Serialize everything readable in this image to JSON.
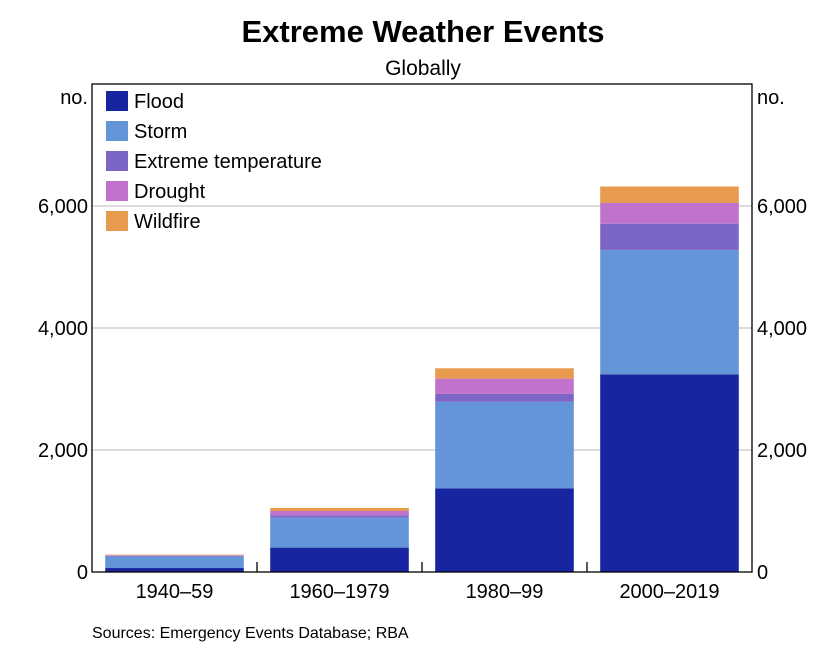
{
  "chart_data": {
    "type": "bar",
    "stacked": true,
    "title": "Extreme Weather Events",
    "subtitle": "Globally",
    "unit_left": "no.",
    "unit_right": "no.",
    "categories": [
      "1940–59",
      "1960–1979",
      "1980–99",
      "2000–2019"
    ],
    "series": [
      {
        "name": "Flood",
        "color": "#1726a0",
        "values": [
          65,
          400,
          1370,
          3240
        ]
      },
      {
        "name": "Storm",
        "color": "#6495d8",
        "values": [
          190,
          490,
          1420,
          2040
        ]
      },
      {
        "name": "Extreme temperature",
        "color": "#7b66c6",
        "values": [
          10,
          40,
          130,
          430
        ]
      },
      {
        "name": "Drought",
        "color": "#c072cc",
        "values": [
          10,
          70,
          250,
          340
        ]
      },
      {
        "name": "Wildfire",
        "color": "#e89a4e",
        "values": [
          10,
          50,
          170,
          270
        ]
      }
    ],
    "ylim": [
      0,
      8000
    ],
    "yticks": [
      0,
      2000,
      4000,
      6000
    ],
    "ytick_labels": [
      "0",
      "2,000",
      "4,000",
      "6,000"
    ],
    "grid": true,
    "legend_position": "top-left"
  },
  "footer": {
    "source": "Sources: Emergency Events Database; RBA"
  }
}
